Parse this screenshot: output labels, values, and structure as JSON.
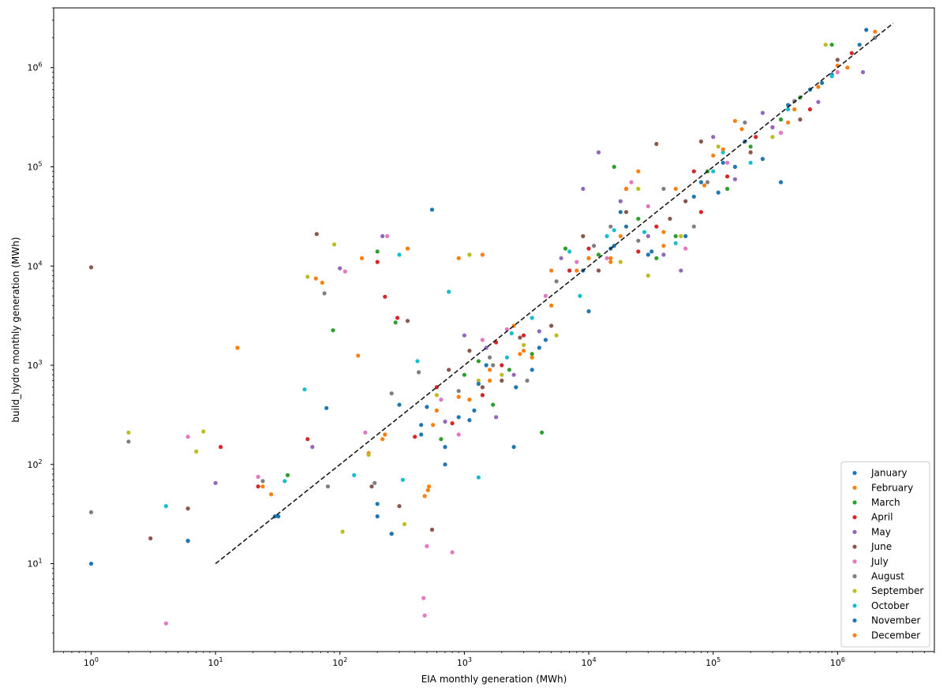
{
  "chart_data": {
    "type": "scatter",
    "title": "",
    "xlabel": "EIA monthly generation (MWh)",
    "ylabel": "build_hydro monthly generation (MWh)",
    "xscale": "log",
    "yscale": "log",
    "xlim": [
      0.5,
      6000000
    ],
    "ylim": [
      1.3,
      4000000
    ],
    "grid": false,
    "legend_position": "lower-right",
    "x_ticks": [
      {
        "value": 1,
        "base": "10",
        "exp": "0"
      },
      {
        "value": 10,
        "base": "10",
        "exp": "1"
      },
      {
        "value": 100,
        "base": "10",
        "exp": "2"
      },
      {
        "value": 1000,
        "base": "10",
        "exp": "3"
      },
      {
        "value": 10000,
        "base": "10",
        "exp": "4"
      },
      {
        "value": 100000,
        "base": "10",
        "exp": "5"
      },
      {
        "value": 1000000,
        "base": "10",
        "exp": "6"
      }
    ],
    "y_ticks": [
      {
        "value": 10,
        "base": "10",
        "exp": "1"
      },
      {
        "value": 100,
        "base": "10",
        "exp": "2"
      },
      {
        "value": 1000,
        "base": "10",
        "exp": "3"
      },
      {
        "value": 10000,
        "base": "10",
        "exp": "4"
      },
      {
        "value": 100000,
        "base": "10",
        "exp": "5"
      },
      {
        "value": 1000000,
        "base": "10",
        "exp": "6"
      }
    ],
    "reference_line": {
      "style": "dashed",
      "color": "#1a1a1a",
      "x": [
        10,
        2800000
      ],
      "y": [
        10,
        2800000
      ]
    },
    "series": [
      {
        "name": "January",
        "color": "#1f77b4",
        "points": [
          [
            6,
            17
          ],
          [
            30,
            30
          ],
          [
            1,
            10
          ],
          [
            260,
            20
          ],
          [
            300,
            400
          ],
          [
            550,
            37000
          ],
          [
            700,
            150
          ],
          [
            900,
            300
          ],
          [
            1500,
            1000
          ],
          [
            2600,
            600
          ],
          [
            3500,
            900
          ],
          [
            10000,
            3500
          ],
          [
            15000,
            15000
          ],
          [
            30000,
            13000
          ],
          [
            60000,
            20000
          ],
          [
            120000,
            110000
          ],
          [
            250000,
            120000
          ],
          [
            400000,
            420000
          ],
          [
            900000,
            850000
          ],
          [
            1500000,
            1700000
          ],
          [
            200,
            30
          ],
          [
            450,
            250
          ],
          [
            1200,
            350
          ],
          [
            4000,
            1500
          ],
          [
            20000,
            25000
          ],
          [
            80000,
            70000
          ],
          [
            180000,
            180000
          ],
          [
            600000,
            600000
          ]
        ]
      },
      {
        "name": "February",
        "color": "#ff7f0e",
        "points": [
          [
            15,
            1500
          ],
          [
            28,
            50
          ],
          [
            140,
            1250
          ],
          [
            170,
            130
          ],
          [
            230,
            200
          ],
          [
            480,
            48
          ],
          [
            520,
            60
          ],
          [
            600,
            350
          ],
          [
            900,
            12000
          ],
          [
            1600,
            700
          ],
          [
            2500,
            2500
          ],
          [
            5000,
            4000
          ],
          [
            8000,
            9000
          ],
          [
            15000,
            12000
          ],
          [
            25000,
            90000
          ],
          [
            40000,
            16000
          ],
          [
            100000,
            130000
          ],
          [
            150000,
            290000
          ],
          [
            300000,
            250000
          ],
          [
            700000,
            640000
          ],
          [
            1200000,
            1000000
          ],
          [
            2000000,
            2300000
          ],
          [
            350,
            15000
          ],
          [
            1100,
            450
          ],
          [
            3000,
            1400
          ],
          [
            18000,
            20000
          ],
          [
            50000,
            60000
          ],
          [
            450000,
            380000
          ]
        ]
      },
      {
        "name": "March",
        "color": "#2ca02c",
        "points": [
          [
            38,
            78
          ],
          [
            88,
            2250
          ],
          [
            200,
            14000
          ],
          [
            650,
            180
          ],
          [
            1000,
            800
          ],
          [
            1700,
            400
          ],
          [
            3500,
            1300
          ],
          [
            4200,
            210
          ],
          [
            6500,
            15000
          ],
          [
            12000,
            13000
          ],
          [
            25000,
            30000
          ],
          [
            50000,
            20000
          ],
          [
            90000,
            90000
          ],
          [
            200000,
            160000
          ],
          [
            500000,
            500000
          ],
          [
            900000,
            1700000
          ],
          [
            280,
            2700
          ],
          [
            1300,
            1100
          ],
          [
            2300,
            900
          ],
          [
            16000,
            100000
          ],
          [
            35000,
            12000
          ],
          [
            130000,
            60000
          ],
          [
            350000,
            300000
          ]
        ]
      },
      {
        "name": "April",
        "color": "#d62728",
        "points": [
          [
            11,
            150
          ],
          [
            22,
            60
          ],
          [
            55,
            180
          ],
          [
            200,
            11000
          ],
          [
            230,
            4900
          ],
          [
            290,
            3000
          ],
          [
            600,
            600
          ],
          [
            800,
            260
          ],
          [
            1400,
            500
          ],
          [
            2000,
            1000
          ],
          [
            3000,
            2000
          ],
          [
            7000,
            9000
          ],
          [
            10000,
            15000
          ],
          [
            20000,
            60000
          ],
          [
            35000,
            25000
          ],
          [
            70000,
            90000
          ],
          [
            130000,
            80000
          ],
          [
            220000,
            200000
          ],
          [
            600000,
            380000
          ],
          [
            1300000,
            1400000
          ],
          [
            400,
            190
          ],
          [
            1800,
            1700
          ],
          [
            25000,
            14000
          ],
          [
            80000,
            35000
          ]
        ]
      },
      {
        "name": "May",
        "color": "#9467bd",
        "points": [
          [
            10,
            65
          ],
          [
            60,
            150
          ],
          [
            100,
            9500
          ],
          [
            220,
            20000
          ],
          [
            700,
            270
          ],
          [
            1000,
            2000
          ],
          [
            1500,
            1500
          ],
          [
            2500,
            800
          ],
          [
            6000,
            12000
          ],
          [
            12000,
            140000
          ],
          [
            18000,
            45000
          ],
          [
            30000,
            20000
          ],
          [
            55000,
            9000
          ],
          [
            100000,
            200000
          ],
          [
            150000,
            75000
          ],
          [
            300000,
            250000
          ],
          [
            700000,
            450000
          ],
          [
            1600000,
            900000
          ],
          [
            1800,
            300
          ],
          [
            4000,
            2200
          ],
          [
            9000,
            60000
          ],
          [
            40000,
            13000
          ],
          [
            250000,
            350000
          ]
        ]
      },
      {
        "name": "June",
        "color": "#8c564b",
        "points": [
          [
            1,
            9700
          ],
          [
            3,
            18
          ],
          [
            6,
            36
          ],
          [
            65,
            21000
          ],
          [
            180,
            60
          ],
          [
            300,
            38
          ],
          [
            550,
            22
          ],
          [
            750,
            900
          ],
          [
            1100,
            1400
          ],
          [
            2000,
            700
          ],
          [
            2800,
            1900
          ],
          [
            5000,
            2500
          ],
          [
            9000,
            20000
          ],
          [
            20000,
            35000
          ],
          [
            35000,
            170000
          ],
          [
            45000,
            30000
          ],
          [
            80000,
            180000
          ],
          [
            200000,
            140000
          ],
          [
            500000,
            300000
          ],
          [
            1000000,
            1200000
          ],
          [
            350,
            2800
          ],
          [
            1400,
            600
          ],
          [
            12000,
            9000
          ],
          [
            60000,
            45000
          ]
        ]
      },
      {
        "name": "July",
        "color": "#e377c2",
        "points": [
          [
            4,
            2.5
          ],
          [
            6,
            190
          ],
          [
            22,
            75
          ],
          [
            110,
            8800
          ],
          [
            160,
            210
          ],
          [
            470,
            4.5
          ],
          [
            480,
            3
          ],
          [
            500,
            15
          ],
          [
            800,
            13
          ],
          [
            900,
            200
          ],
          [
            1400,
            1800
          ],
          [
            2200,
            2300
          ],
          [
            4500,
            5000
          ],
          [
            8000,
            11000
          ],
          [
            14000,
            12000
          ],
          [
            30000,
            40000
          ],
          [
            60000,
            15000
          ],
          [
            130000,
            110000
          ],
          [
            350000,
            220000
          ],
          [
            1000000,
            900000
          ],
          [
            240,
            20000
          ],
          [
            650,
            450
          ],
          [
            22000,
            70000
          ]
        ]
      },
      {
        "name": "August",
        "color": "#7f7f7f",
        "points": [
          [
            1,
            33
          ],
          [
            2,
            170
          ],
          [
            24,
            68
          ],
          [
            75,
            5300
          ],
          [
            80,
            60
          ],
          [
            190,
            65
          ],
          [
            430,
            850
          ],
          [
            900,
            550
          ],
          [
            1600,
            1200
          ],
          [
            3200,
            700
          ],
          [
            5500,
            7000
          ],
          [
            11000,
            16000
          ],
          [
            25000,
            18000
          ],
          [
            40000,
            60000
          ],
          [
            90000,
            70000
          ],
          [
            180000,
            280000
          ],
          [
            450000,
            460000
          ],
          [
            2000000,
            2000000
          ],
          [
            260,
            520
          ],
          [
            1700,
            1000
          ],
          [
            15000,
            25000
          ],
          [
            70000,
            25000
          ]
        ]
      },
      {
        "name": "September",
        "color": "#bcbd22",
        "points": [
          [
            2,
            210
          ],
          [
            7,
            135
          ],
          [
            8,
            215
          ],
          [
            55,
            7800
          ],
          [
            90,
            16500
          ],
          [
            105,
            21
          ],
          [
            170,
            125
          ],
          [
            330,
            25
          ],
          [
            600,
            500
          ],
          [
            1100,
            13000
          ],
          [
            2000,
            800
          ],
          [
            3000,
            1600
          ],
          [
            5500,
            2000
          ],
          [
            10000,
            12000
          ],
          [
            18000,
            11000
          ],
          [
            30000,
            8000
          ],
          [
            55000,
            20000
          ],
          [
            110000,
            160000
          ],
          [
            300000,
            200000
          ],
          [
            800000,
            1700000
          ],
          [
            1300,
            700
          ],
          [
            25000,
            60000
          ]
        ]
      },
      {
        "name": "October",
        "color": "#17becf",
        "points": [
          [
            4,
            38
          ],
          [
            36,
            68
          ],
          [
            52,
            570
          ],
          [
            130,
            78
          ],
          [
            300,
            13000
          ],
          [
            320,
            70
          ],
          [
            420,
            1100
          ],
          [
            750,
            5500
          ],
          [
            1300,
            74
          ],
          [
            2200,
            1200
          ],
          [
            3500,
            3000
          ],
          [
            7000,
            14000
          ],
          [
            14000,
            20000
          ],
          [
            28000,
            22000
          ],
          [
            50000,
            17000
          ],
          [
            100000,
            90000
          ],
          [
            200000,
            110000
          ],
          [
            400000,
            380000
          ],
          [
            900000,
            820000
          ],
          [
            2400,
            2100
          ],
          [
            8500,
            5000
          ],
          [
            16000,
            23000
          ],
          [
            120000,
            140000
          ]
        ]
      },
      {
        "name": "November",
        "color": "#1f77b4",
        "points": [
          [
            6,
            17
          ],
          [
            32,
            30
          ],
          [
            78,
            370
          ],
          [
            200,
            40
          ],
          [
            260,
            20
          ],
          [
            500,
            380
          ],
          [
            700,
            100
          ],
          [
            1100,
            280
          ],
          [
            2500,
            150
          ],
          [
            4500,
            1800
          ],
          [
            9000,
            9000
          ],
          [
            16000,
            16000
          ],
          [
            32000,
            14000
          ],
          [
            70000,
            50000
          ],
          [
            150000,
            100000
          ],
          [
            350000,
            70000
          ],
          [
            750000,
            700000
          ],
          [
            1700000,
            2400000
          ],
          [
            450,
            200
          ],
          [
            1300,
            650
          ],
          [
            18000,
            35000
          ],
          [
            110000,
            55000
          ]
        ]
      },
      {
        "name": "December",
        "color": "#ff7f0e",
        "points": [
          [
            24,
            60
          ],
          [
            64,
            7500
          ],
          [
            72,
            6800
          ],
          [
            150,
            12000
          ],
          [
            220,
            180
          ],
          [
            510,
            55
          ],
          [
            560,
            250
          ],
          [
            900,
            480
          ],
          [
            1600,
            900
          ],
          [
            2800,
            1300
          ],
          [
            5000,
            9000
          ],
          [
            10000,
            12000
          ],
          [
            20000,
            60000
          ],
          [
            40000,
            22000
          ],
          [
            85000,
            65000
          ],
          [
            170000,
            240000
          ],
          [
            400000,
            280000
          ],
          [
            1000000,
            1050000
          ],
          [
            1400,
            13000
          ],
          [
            3500,
            1200
          ],
          [
            15000,
            11000
          ],
          [
            120000,
            150000
          ]
        ]
      }
    ]
  }
}
